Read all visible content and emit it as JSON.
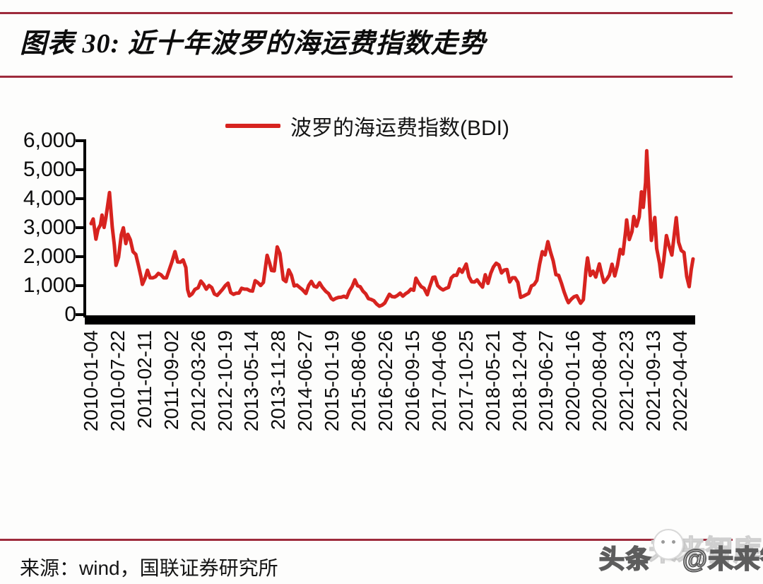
{
  "header": {
    "title": "图表 30: 近十年波罗的海运费指数走势"
  },
  "footer": {
    "source": "来源：wind，国联证券研究所"
  },
  "watermark": {
    "prefix": "头条",
    "handle": "@未来智库",
    "ghost": "未来智库",
    "logo": "toutiao-face-logo"
  },
  "colors": {
    "line_red": "#d7231f",
    "rule_maroon": "#9e2b3c",
    "axis_black": "#000000",
    "text_black": "#0d0d0d"
  },
  "chart_data": {
    "type": "line",
    "title": "图表 30: 近十年波罗的海运费指数走势",
    "legend": [
      "波罗的海运费指数(BDI)"
    ],
    "legend_position": "top-center",
    "xlabel": "",
    "ylabel": "",
    "ylim": [
      0,
      6000
    ],
    "ytick_labels": [
      "0",
      "1,000",
      "2,000",
      "3,000",
      "4,000",
      "5,000",
      "6,000"
    ],
    "grid": false,
    "xtick_labels": [
      "2010-01-04",
      "2010-07-22",
      "2011-02-11",
      "2011-09-02",
      "2012-03-26",
      "2012-10-19",
      "2013-05-14",
      "2013-11-28",
      "2014-06-27",
      "2015-01-19",
      "2015-08-06",
      "2016-02-26",
      "2016-09-15",
      "2017-04-06",
      "2017-10-25",
      "2018-05-21",
      "2018-12-04",
      "2019-06-27",
      "2020-01-16",
      "2020-08-04",
      "2021-02-23",
      "2021-09-13",
      "2022-04-04"
    ],
    "series": [
      {
        "name": "波罗的海运费指数(BDI)",
        "color": "#d7231f",
        "points": [
          [
            "2010-01-04",
            3140
          ],
          [
            "2010-01-20",
            3299
          ],
          [
            "2010-02-10",
            2602
          ],
          [
            "2010-02-26",
            2941
          ],
          [
            "2010-03-17",
            3100
          ],
          [
            "2010-03-29",
            3434
          ],
          [
            "2010-04-14",
            3009
          ],
          [
            "2010-04-28",
            3344
          ],
          [
            "2010-05-26",
            4209
          ],
          [
            "2010-06-16",
            3020
          ],
          [
            "2010-07-02",
            2406
          ],
          [
            "2010-07-15",
            1700
          ],
          [
            "2010-08-04",
            1977
          ],
          [
            "2010-08-25",
            2756
          ],
          [
            "2010-09-10",
            2995
          ],
          [
            "2010-09-29",
            2452
          ],
          [
            "2010-10-15",
            2769
          ],
          [
            "2010-11-03",
            2580
          ],
          [
            "2010-11-24",
            2170
          ],
          [
            "2010-12-15",
            2077
          ],
          [
            "2011-01-05",
            1693
          ],
          [
            "2011-01-25",
            1292
          ],
          [
            "2011-02-04",
            1045
          ],
          [
            "2011-02-25",
            1258
          ],
          [
            "2011-03-15",
            1531
          ],
          [
            "2011-04-05",
            1271
          ],
          [
            "2011-04-26",
            1269
          ],
          [
            "2011-05-17",
            1310
          ],
          [
            "2011-06-07",
            1421
          ],
          [
            "2011-06-28",
            1372
          ],
          [
            "2011-07-19",
            1268
          ],
          [
            "2011-08-09",
            1268
          ],
          [
            "2011-08-30",
            1539
          ],
          [
            "2011-09-20",
            1814
          ],
          [
            "2011-10-14",
            2173
          ],
          [
            "2011-11-04",
            1817
          ],
          [
            "2011-11-25",
            1807
          ],
          [
            "2011-12-16",
            1888
          ],
          [
            "2012-01-06",
            1624
          ],
          [
            "2012-01-20",
            862
          ],
          [
            "2012-02-03",
            647
          ],
          [
            "2012-02-24",
            718
          ],
          [
            "2012-03-16",
            870
          ],
          [
            "2012-04-10",
            928
          ],
          [
            "2012-05-01",
            1157
          ],
          [
            "2012-05-22",
            1042
          ],
          [
            "2012-06-12",
            878
          ],
          [
            "2012-07-03",
            1004
          ],
          [
            "2012-07-24",
            933
          ],
          [
            "2012-08-14",
            711
          ],
          [
            "2012-09-04",
            663
          ],
          [
            "2012-09-25",
            766
          ],
          [
            "2012-10-16",
            875
          ],
          [
            "2012-11-06",
            1000
          ],
          [
            "2012-11-27",
            1086
          ],
          [
            "2012-12-18",
            760
          ],
          [
            "2013-01-08",
            699
          ],
          [
            "2013-01-29",
            738
          ],
          [
            "2013-02-19",
            745
          ],
          [
            "2013-03-12",
            910
          ],
          [
            "2013-04-02",
            880
          ],
          [
            "2013-04-23",
            877
          ],
          [
            "2013-05-14",
            828
          ],
          [
            "2013-06-04",
            812
          ],
          [
            "2013-06-25",
            1170
          ],
          [
            "2013-07-16",
            1103
          ],
          [
            "2013-08-06",
            1004
          ],
          [
            "2013-08-27",
            1110
          ],
          [
            "2013-09-25",
            2046
          ],
          [
            "2013-10-15",
            1770
          ],
          [
            "2013-10-29",
            1525
          ],
          [
            "2013-11-19",
            1510
          ],
          [
            "2013-12-12",
            2337
          ],
          [
            "2014-01-02",
            2113
          ],
          [
            "2014-01-28",
            1213
          ],
          [
            "2014-02-18",
            1140
          ],
          [
            "2014-03-11",
            1543
          ],
          [
            "2014-04-01",
            1362
          ],
          [
            "2014-04-22",
            990
          ],
          [
            "2014-05-13",
            1020
          ],
          [
            "2014-06-03",
            941
          ],
          [
            "2014-06-24",
            867
          ],
          [
            "2014-07-22",
            732
          ],
          [
            "2014-08-12",
            1005
          ],
          [
            "2014-09-02",
            1147
          ],
          [
            "2014-09-23",
            980
          ],
          [
            "2014-10-14",
            950
          ],
          [
            "2014-11-04",
            1100
          ],
          [
            "2014-11-25",
            950
          ],
          [
            "2014-12-23",
            800
          ],
          [
            "2015-01-13",
            727
          ],
          [
            "2015-02-03",
            559
          ],
          [
            "2015-02-18",
            509
          ],
          [
            "2015-03-10",
            562
          ],
          [
            "2015-03-31",
            596
          ],
          [
            "2015-04-21",
            601
          ],
          [
            "2015-05-12",
            634
          ],
          [
            "2015-06-02",
            588
          ],
          [
            "2015-06-23",
            820
          ],
          [
            "2015-07-14",
            965
          ],
          [
            "2015-08-04",
            1200
          ],
          [
            "2015-08-25",
            994
          ],
          [
            "2015-09-15",
            960
          ],
          [
            "2015-10-06",
            809
          ],
          [
            "2015-10-27",
            720
          ],
          [
            "2015-11-17",
            550
          ],
          [
            "2015-12-08",
            524
          ],
          [
            "2015-12-29",
            478
          ],
          [
            "2016-01-19",
            369
          ],
          [
            "2016-02-10",
            290
          ],
          [
            "2016-03-01",
            328
          ],
          [
            "2016-03-22",
            399
          ],
          [
            "2016-04-12",
            576
          ],
          [
            "2016-04-27",
            703
          ],
          [
            "2016-05-17",
            623
          ],
          [
            "2016-06-07",
            610
          ],
          [
            "2016-06-28",
            660
          ],
          [
            "2016-07-19",
            741
          ],
          [
            "2016-08-09",
            637
          ],
          [
            "2016-08-30",
            720
          ],
          [
            "2016-09-20",
            780
          ],
          [
            "2016-10-11",
            880
          ],
          [
            "2016-11-01",
            840
          ],
          [
            "2016-11-18",
            1257
          ],
          [
            "2016-12-09",
            1090
          ],
          [
            "2016-12-30",
            961
          ],
          [
            "2017-01-20",
            910
          ],
          [
            "2017-02-14",
            685
          ],
          [
            "2017-03-03",
            939
          ],
          [
            "2017-03-29",
            1282
          ],
          [
            "2017-04-14",
            1296
          ],
          [
            "2017-05-05",
            1000
          ],
          [
            "2017-05-26",
            910
          ],
          [
            "2017-06-16",
            851
          ],
          [
            "2017-07-07",
            900
          ],
          [
            "2017-07-28",
            941
          ],
          [
            "2017-08-18",
            1261
          ],
          [
            "2017-09-08",
            1355
          ],
          [
            "2017-09-29",
            1356
          ],
          [
            "2017-10-20",
            1578
          ],
          [
            "2017-11-10",
            1461
          ],
          [
            "2017-12-12",
            1743
          ],
          [
            "2018-01-02",
            1310
          ],
          [
            "2018-01-23",
            1134
          ],
          [
            "2018-02-13",
            1125
          ],
          [
            "2018-03-06",
            1199
          ],
          [
            "2018-03-27",
            1063
          ],
          [
            "2018-04-17",
            948
          ],
          [
            "2018-05-08",
            1376
          ],
          [
            "2018-05-29",
            1077
          ],
          [
            "2018-06-19",
            1425
          ],
          [
            "2018-07-10",
            1645
          ],
          [
            "2018-07-31",
            1774
          ],
          [
            "2018-08-21",
            1714
          ],
          [
            "2018-09-11",
            1438
          ],
          [
            "2018-10-02",
            1540
          ],
          [
            "2018-10-23",
            1556
          ],
          [
            "2018-11-13",
            1127
          ],
          [
            "2018-12-04",
            1270
          ],
          [
            "2018-12-24",
            1271
          ],
          [
            "2019-01-15",
            1112
          ],
          [
            "2019-02-05",
            595
          ],
          [
            "2019-02-26",
            635
          ],
          [
            "2019-03-19",
            685
          ],
          [
            "2019-04-09",
            735
          ],
          [
            "2019-04-30",
            985
          ],
          [
            "2019-05-21",
            1040
          ],
          [
            "2019-06-11",
            1183
          ],
          [
            "2019-07-02",
            1740
          ],
          [
            "2019-07-23",
            2170
          ],
          [
            "2019-08-13",
            2060
          ],
          [
            "2019-09-04",
            2518
          ],
          [
            "2019-09-24",
            2162
          ],
          [
            "2019-10-15",
            1855
          ],
          [
            "2019-11-05",
            1378
          ],
          [
            "2019-11-26",
            1355
          ],
          [
            "2019-12-17",
            1090
          ],
          [
            "2020-01-07",
            791
          ],
          [
            "2020-01-28",
            538
          ],
          [
            "2020-02-10",
            411
          ],
          [
            "2020-03-03",
            535
          ],
          [
            "2020-03-24",
            617
          ],
          [
            "2020-04-14",
            650
          ],
          [
            "2020-05-14",
            393
          ],
          [
            "2020-06-04",
            520
          ],
          [
            "2020-06-25",
            1555
          ],
          [
            "2020-07-06",
            1956
          ],
          [
            "2020-07-28",
            1350
          ],
          [
            "2020-08-18",
            1500
          ],
          [
            "2020-09-08",
            1296
          ],
          [
            "2020-10-06",
            1750
          ],
          [
            "2020-10-27",
            1350
          ],
          [
            "2020-11-10",
            1111
          ],
          [
            "2020-12-01",
            1217
          ],
          [
            "2020-12-22",
            1366
          ],
          [
            "2021-01-12",
            1740
          ],
          [
            "2021-02-02",
            1333
          ],
          [
            "2021-02-23",
            1700
          ],
          [
            "2021-03-16",
            2250
          ],
          [
            "2021-04-06",
            2092
          ],
          [
            "2021-04-27",
            2889
          ],
          [
            "2021-05-05",
            3266
          ],
          [
            "2021-05-25",
            2590
          ],
          [
            "2021-06-15",
            2869
          ],
          [
            "2021-06-29",
            3383
          ],
          [
            "2021-07-20",
            3050
          ],
          [
            "2021-08-10",
            3371
          ],
          [
            "2021-08-27",
            4235
          ],
          [
            "2021-09-10",
            3700
          ],
          [
            "2021-09-28",
            4560
          ],
          [
            "2021-10-07",
            5650
          ],
          [
            "2021-10-19",
            4650
          ],
          [
            "2021-11-12",
            2560
          ],
          [
            "2021-12-08",
            3352
          ],
          [
            "2021-12-23",
            2285
          ],
          [
            "2022-01-14",
            1764
          ],
          [
            "2022-01-26",
            1296
          ],
          [
            "2022-02-15",
            1848
          ],
          [
            "2022-03-08",
            2727
          ],
          [
            "2022-03-29",
            2360
          ],
          [
            "2022-04-19",
            2055
          ],
          [
            "2022-05-23",
            3344
          ],
          [
            "2022-06-10",
            2500
          ],
          [
            "2022-07-01",
            2214
          ],
          [
            "2022-07-22",
            2145
          ],
          [
            "2022-08-12",
            1320
          ],
          [
            "2022-08-31",
            965
          ],
          [
            "2022-09-16",
            1553
          ],
          [
            "2022-09-30",
            1923
          ]
        ]
      }
    ]
  }
}
